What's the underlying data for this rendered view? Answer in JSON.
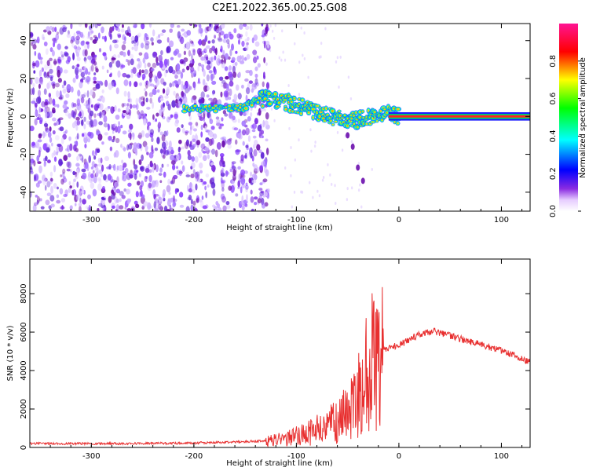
{
  "figure_title": "C2E1.2022.365.00.25.G08",
  "chart_data": [
    {
      "type": "heatmap",
      "title": "C2E1.2022.365.00.25.G08",
      "xlabel": "Height of straight line (km)",
      "ylabel": "Frequency (Hz)",
      "xlim": [
        -360,
        128
      ],
      "ylim": [
        -50,
        49
      ],
      "x_ticks": [
        -300,
        -200,
        -100,
        0,
        100
      ],
      "y_ticks": [
        -40,
        -20,
        0,
        20,
        40
      ],
      "grid": false,
      "colorbar": {
        "label": "Normalized spectral amplitude",
        "range": [
          0,
          1
        ],
        "ticks": [
          0.0,
          0.2,
          0.4,
          0.6,
          0.8
        ],
        "colormap": [
          "#ffffff",
          "#e6ccff",
          "#8a2be2",
          "#0000ff",
          "#00ffff",
          "#00ff00",
          "#ffff00",
          "#ff0000",
          "#ff1493"
        ]
      },
      "noise_region_x": [
        -360,
        -135
      ],
      "signal_track": {
        "x": [
          -210,
          -180,
          -150,
          -135,
          -120,
          -100,
          -80,
          -60,
          -40,
          -25,
          -10,
          0,
          50,
          100,
          128
        ],
        "y": [
          4,
          4,
          5,
          9,
          9,
          6,
          2,
          -1,
          -2,
          0,
          1,
          0,
          0,
          0,
          0
        ]
      },
      "descending_branch": {
        "x": [
          -50,
          -45,
          -40,
          -35
        ],
        "y": [
          -10,
          -16,
          -27,
          -34
        ]
      }
    },
    {
      "type": "line",
      "xlabel": "Height of straight line (km)",
      "ylabel": "SNR (10 * v/v)",
      "xlim": [
        -360,
        128
      ],
      "ylim": [
        0,
        9800
      ],
      "x_ticks": [
        -300,
        -200,
        -100,
        0,
        100
      ],
      "y_ticks": [
        0,
        2000,
        4000,
        6000,
        8000
      ],
      "grid": false,
      "series": [
        {
          "color": "#e83030",
          "x": [
            -360,
            -300,
            -250,
            -200,
            -160,
            -130,
            -110,
            -90,
            -70,
            -60,
            -50,
            -40,
            -30,
            -25,
            -22,
            -20,
            -15,
            -10,
            0,
            10,
            20,
            30,
            35,
            40,
            50,
            60,
            70,
            80,
            90,
            100,
            110,
            120,
            128
          ],
          "y": [
            200,
            200,
            210,
            230,
            280,
            350,
            500,
            800,
            1200,
            1500,
            2000,
            3000,
            4200,
            5000,
            5200,
            4800,
            5000,
            5200,
            5300,
            5600,
            5900,
            6000,
            6050,
            5950,
            5800,
            5650,
            5500,
            5350,
            5200,
            5050,
            4850,
            4600,
            4450
          ]
        }
      ]
    }
  ]
}
